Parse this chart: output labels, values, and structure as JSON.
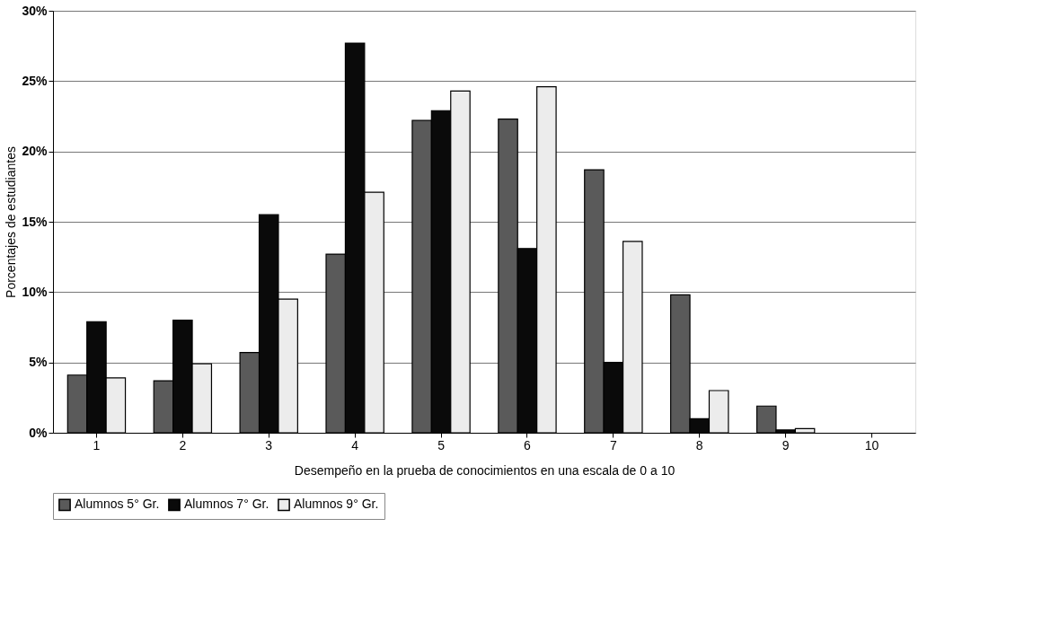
{
  "chart_data": {
    "type": "bar",
    "xlabel": "Desempeño en la prueba de conocimientos en una escala de 0 a 10",
    "ylabel": "Porcentajes de estudiantes",
    "categories": [
      "1",
      "2",
      "3",
      "4",
      "5",
      "6",
      "7",
      "8",
      "9",
      "10"
    ],
    "series": [
      {
        "name": "Alumnos 5° Gr.",
        "color": "#5a5a5a",
        "values": [
          4.1,
          3.7,
          5.7,
          12.7,
          22.2,
          22.3,
          18.7,
          9.8,
          1.9,
          null
        ]
      },
      {
        "name": "Alumnos 7° Gr.",
        "color": "#0a0a0a",
        "values": [
          7.9,
          8.0,
          15.5,
          27.7,
          22.9,
          13.1,
          5.0,
          1.0,
          0.2,
          null
        ]
      },
      {
        "name": "Alumnos 9° Gr.",
        "color": "#ececec",
        "values": [
          3.9,
          4.9,
          9.5,
          17.1,
          24.3,
          24.6,
          13.6,
          3.0,
          0.3,
          null
        ]
      }
    ],
    "ylim": [
      0,
      30
    ],
    "yticks": [
      {
        "value": 0,
        "label": "0%"
      },
      {
        "value": 5,
        "label": "5%"
      },
      {
        "value": 10,
        "label": "10%"
      },
      {
        "value": 15,
        "label": "15%"
      },
      {
        "value": 20,
        "label": "20%"
      },
      {
        "value": 25,
        "label": "25%"
      },
      {
        "value": 30,
        "label": "30%"
      }
    ],
    "grid": "y",
    "legend": "bottom"
  }
}
